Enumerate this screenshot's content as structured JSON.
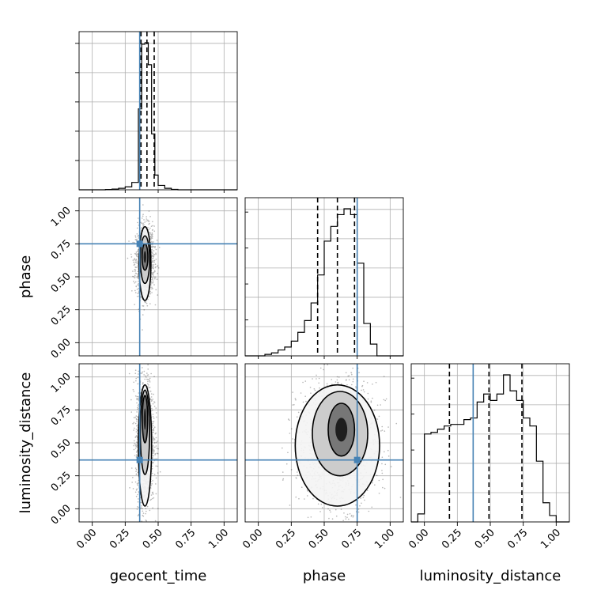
{
  "chart_data": {
    "type": "corner",
    "parameters": [
      "geocent_time",
      "phase",
      "luminosity_distance"
    ],
    "truths": [
      0.36,
      0.75,
      0.37
    ],
    "truth_color": "#4682b4",
    "ticks": [
      "0.00",
      "0.25",
      "0.50",
      "0.75",
      "1.00"
    ],
    "ylabels": [
      "",
      "phase",
      "luminosity_distance"
    ],
    "xlabels": [
      "geocent_time",
      "phase",
      "luminosity_distance"
    ],
    "grid": true,
    "histograms": [
      {
        "param": "geocent_time",
        "bin_edges": [
          -0.1,
          -0.05,
          0.0,
          0.05,
          0.1,
          0.15,
          0.2,
          0.25,
          0.3,
          0.35,
          0.375,
          0.4,
          0.425,
          0.45,
          0.475,
          0.5,
          0.55,
          0.6,
          0.65,
          0.7,
          1.1
        ],
        "counts": [
          0,
          0,
          0,
          0,
          0.002,
          0.005,
          0.01,
          0.02,
          0.05,
          0.55,
          0.99,
          1.0,
          0.85,
          0.38,
          0.1,
          0.03,
          0.01,
          0.003,
          0,
          0
        ],
        "quantiles": [
          0.37,
          0.415,
          0.47
        ]
      },
      {
        "param": "phase",
        "bin_edges": [
          -0.1,
          -0.05,
          0.0,
          0.05,
          0.1,
          0.15,
          0.2,
          0.25,
          0.3,
          0.35,
          0.4,
          0.45,
          0.5,
          0.55,
          0.6,
          0.65,
          0.7,
          0.75,
          0.8,
          0.85,
          0.9,
          0.95,
          1.0,
          1.05,
          1.1
        ],
        "counts": [
          0,
          0,
          0,
          0.01,
          0.02,
          0.04,
          0.06,
          0.1,
          0.16,
          0.24,
          0.36,
          0.55,
          0.78,
          0.88,
          0.96,
          1.0,
          0.96,
          0.63,
          0.22,
          0.08,
          0.0,
          0,
          0,
          0
        ],
        "quantiles": [
          0.45,
          0.6,
          0.73
        ]
      },
      {
        "param": "luminosity_distance",
        "bin_edges": [
          -0.1,
          -0.05,
          0.0,
          0.05,
          0.1,
          0.15,
          0.2,
          0.25,
          0.3,
          0.35,
          0.4,
          0.45,
          0.5,
          0.55,
          0.6,
          0.65,
          0.7,
          0.75,
          0.8,
          0.85,
          0.9,
          0.95,
          1.0,
          1.1
        ],
        "counts": [
          0,
          0.05,
          0.55,
          0.56,
          0.58,
          0.6,
          0.61,
          0.61,
          0.64,
          0.65,
          0.75,
          0.8,
          0.76,
          0.8,
          0.92,
          0.82,
          0.76,
          0.65,
          0.6,
          0.38,
          0.12,
          0.04,
          0,
          0
        ],
        "quantiles": [
          0.19,
          0.49,
          0.74
        ]
      }
    ],
    "pairs": [
      {
        "x_param": "geocent_time",
        "y_param": "phase",
        "center": [
          0.4,
          0.62
        ],
        "spread": [
          0.035,
          0.13
        ],
        "contour_levels": [
          {
            "cx": 0.4,
            "cy": 0.6,
            "rx": 0.045,
            "ry": 0.28
          },
          {
            "cx": 0.4,
            "cy": 0.63,
            "rx": 0.035,
            "ry": 0.18
          },
          {
            "cx": 0.4,
            "cy": 0.65,
            "rx": 0.022,
            "ry": 0.1
          }
        ]
      },
      {
        "x_param": "geocent_time",
        "y_param": "luminosity_distance",
        "center": [
          0.4,
          0.52
        ],
        "spread": [
          0.035,
          0.24
        ],
        "contour_levels": [
          {
            "cx": 0.4,
            "cy": 0.48,
            "rx": 0.05,
            "ry": 0.46
          },
          {
            "cx": 0.4,
            "cy": 0.58,
            "rx": 0.035,
            "ry": 0.32
          },
          {
            "cx": 0.4,
            "cy": 0.68,
            "rx": 0.02,
            "ry": 0.18
          }
        ]
      },
      {
        "x_param": "phase",
        "y_param": "luminosity_distance",
        "center": [
          0.6,
          0.5
        ],
        "spread": [
          0.15,
          0.24
        ],
        "contour_levels": [
          {
            "cx": 0.6,
            "cy": 0.48,
            "rx": 0.32,
            "ry": 0.46
          },
          {
            "cx": 0.62,
            "cy": 0.57,
            "rx": 0.21,
            "ry": 0.32
          },
          {
            "cx": 0.63,
            "cy": 0.6,
            "rx": 0.1,
            "ry": 0.2
          }
        ]
      }
    ]
  }
}
